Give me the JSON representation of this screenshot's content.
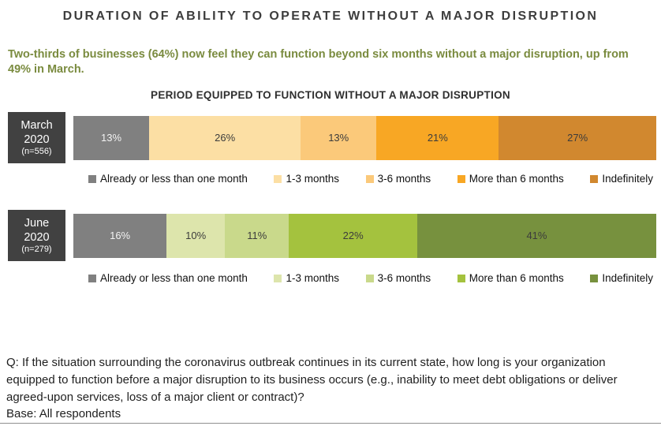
{
  "page": {
    "title": "DURATION OF ABILITY TO OPERATE WITHOUT A MAJOR DISRUPTION",
    "subtitle": "Two-thirds of businesses (64%) now feel they can function beyond six months without a major disruption, up from 49% in March.",
    "chart_heading": "PERIOD EQUIPPED TO FUNCTION WITHOUT A MAJOR DISRUPTION"
  },
  "chart_data": [
    {
      "type": "bar",
      "variant": "horizontal-stacked",
      "group": "March 2020",
      "group_label_lines": [
        "March",
        "2020",
        "(n=556)"
      ],
      "sample_size": 556,
      "categories": [
        "Already or less than one month",
        "1-3 months",
        "3-6 months",
        "More than 6 months",
        "Indefinitely"
      ],
      "values": [
        13,
        26,
        13,
        21,
        27
      ],
      "unit": "%",
      "xlim": [
        0,
        100
      ],
      "legend_position": "bottom",
      "segment_colors": [
        "#808080",
        "#FCDFA4",
        "#FBC97A",
        "#F8A724",
        "#D1882F"
      ],
      "value_text_colors": [
        "#F2F2F2",
        "#3C3C3C",
        "#3C3C3C",
        "#3C3C3C",
        "#3C3C3C"
      ]
    },
    {
      "type": "bar",
      "variant": "horizontal-stacked",
      "group": "June 2020",
      "group_label_lines": [
        "June",
        "2020",
        "(n=279)"
      ],
      "sample_size": 279,
      "categories": [
        "Already or less than one month",
        "1-3 months",
        "3-6 months",
        "More than 6 months",
        "Indefinitely"
      ],
      "values": [
        16,
        10,
        11,
        22,
        41
      ],
      "unit": "%",
      "xlim": [
        0,
        100
      ],
      "legend_position": "bottom",
      "segment_colors": [
        "#808080",
        "#DDE5AC",
        "#C9D98B",
        "#A4C23E",
        "#77913E"
      ],
      "value_text_colors": [
        "#F2F2F2",
        "#3C3C3C",
        "#3C3C3C",
        "#3C3C3C",
        "#3C3C3C"
      ]
    }
  ],
  "footer": {
    "question": "Q: If the situation surrounding the coronavirus outbreak continues in its current state, how long is your organization equipped to function before a major disruption to its business occurs (e.g., inability to meet debt obligations or deliver agreed-upon services, loss of a major client or contract)?",
    "base": "Base: All respondents"
  },
  "colors": {
    "title_text": "#3D3D3D",
    "subtitle_text": "#7A8B3F",
    "heading_text": "#2F2F2F",
    "label_box_bg": "#414141",
    "label_box_text": "#FFFFFF",
    "bottom_rule": "#8F8F8F"
  }
}
